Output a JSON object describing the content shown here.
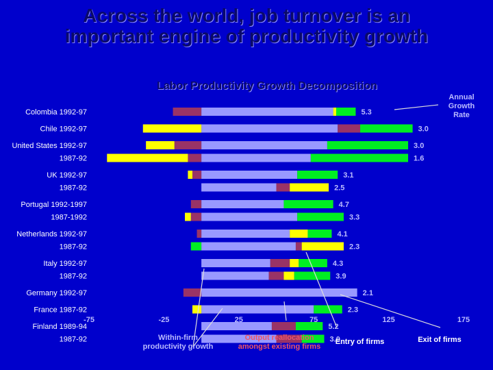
{
  "slide": {
    "title": "Across the world, job turnover is an important engine of productivity growth",
    "subtitle": "Labor Productivity Growth Decomposition"
  },
  "annotations": {
    "annual_growth": "Annual Growth Rate",
    "within": "Within-firm productivity growth",
    "realloc": "Output reallocation amongst existing firms",
    "entry": "Entry of firms",
    "exit": "Exit of firms"
  },
  "colors": {
    "background": "#0000cc",
    "within": "#9999ff",
    "realloc": "#993366",
    "entry": "#ffff00",
    "exit": "#00ee22",
    "value": "#bbbbff"
  },
  "chart_data": {
    "type": "bar",
    "stacked": true,
    "orientation": "horizontal",
    "xlim": [
      -75,
      175
    ],
    "xticks": [
      "-75",
      "-25",
      "25",
      "75",
      "125",
      "175"
    ],
    "series_order": [
      "Within-firm productivity growth",
      "Output reallocation amongst existing firms",
      "Entry of firms",
      "Exit of firms"
    ],
    "groups": [
      {
        "label": "Colombia 1992-97",
        "bars": [
          {
            "label": "",
            "within": 88,
            "realloc": -19,
            "entry": 2,
            "exit": 13,
            "total": "5.3"
          }
        ]
      },
      {
        "label": "Chile 1992-97",
        "bars": [
          {
            "label": "",
            "within": 91,
            "realloc": 15,
            "entry": -39,
            "exit": 35,
            "total": "3.0"
          }
        ]
      },
      {
        "label": "United States 1992-97",
        "bars": [
          {
            "label": "",
            "within": 84,
            "realloc": -18,
            "entry": -19,
            "exit": 54,
            "total": "3.0"
          },
          {
            "label": "1987-92",
            "within": 73,
            "realloc": -9,
            "entry": -54,
            "exit": 65,
            "total": "1.6"
          }
        ]
      },
      {
        "label": "UK 1992-97",
        "bars": [
          {
            "label": "",
            "within": 64,
            "realloc": -6,
            "entry": -3,
            "exit": 27,
            "total": "3.1"
          },
          {
            "label": "1987-92",
            "within": 50,
            "realloc": 9,
            "entry": 26,
            "exit": 0,
            "total": "2.5"
          }
        ]
      },
      {
        "label": "Portugal 1992-1997",
        "bars": [
          {
            "label": "",
            "within": 55,
            "realloc": -7,
            "entry": 0,
            "exit": 33,
            "total": "4.7"
          },
          {
            "label": "1987-1992",
            "within": 64,
            "realloc": -7,
            "entry": -4,
            "exit": 31,
            "total": "3.3"
          }
        ]
      },
      {
        "label": "Netherlands 1992-97",
        "bars": [
          {
            "label": "",
            "within": 59,
            "realloc": -3,
            "entry": 12,
            "exit": 16,
            "total": "4.1"
          },
          {
            "label": "1987-92",
            "within": 63,
            "realloc": 4,
            "entry": 28,
            "exit": -7,
            "total": "2.3"
          }
        ]
      },
      {
        "label": "Italy 1992-97",
        "bars": [
          {
            "label": "",
            "within": 46,
            "realloc": 13,
            "entry": 6,
            "exit": 19,
            "total": "4.3"
          },
          {
            "label": "1987-92",
            "within": 45,
            "realloc": 10,
            "entry": 7,
            "exit": 24,
            "total": "3.9"
          }
        ]
      },
      {
        "label": "Germany 1992-97",
        "bars": [
          {
            "label": "",
            "within": 104,
            "realloc": -12,
            "entry": 0,
            "exit": 0,
            "total": "2.1"
          }
        ]
      },
      {
        "label": "France 1987-92",
        "bars": [
          {
            "label": "",
            "within": 75,
            "realloc": 0,
            "entry": -6,
            "exit": 19,
            "total": "2.3"
          }
        ]
      },
      {
        "label": "Finland 1989-94",
        "bars": [
          {
            "label": "",
            "within": 47,
            "realloc": 16,
            "entry": 0,
            "exit": 18,
            "total": "5.2"
          },
          {
            "label": "1987-92",
            "within": 50,
            "realloc": 17,
            "entry": 0,
            "exit": 15,
            "total": "3.0"
          }
        ]
      }
    ]
  }
}
